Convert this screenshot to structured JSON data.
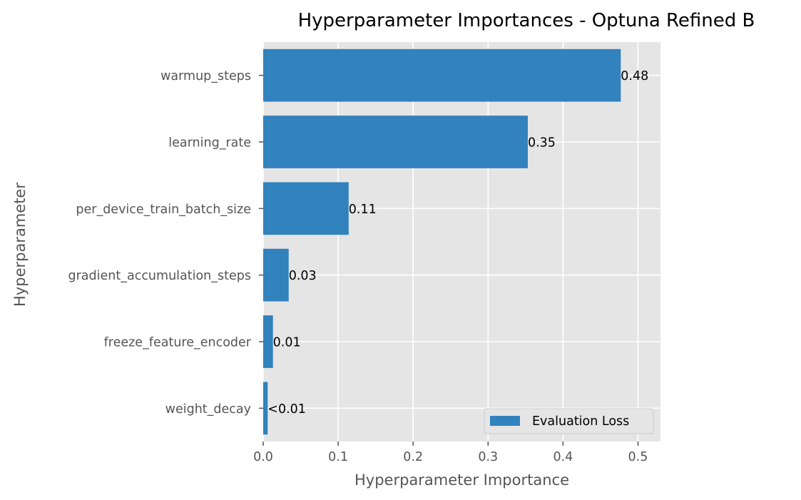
{
  "chart_data": {
    "type": "bar",
    "orientation": "horizontal",
    "title": "Hyperparameter Importances - Optuna Refined B",
    "xlabel": "Hyperparameter Importance",
    "ylabel": "Hyperparameter",
    "categories": [
      "warmup_steps",
      "learning_rate",
      "per_device_train_batch_size",
      "gradient_accumulation_steps",
      "freeze_feature_encoder",
      "weight_decay"
    ],
    "series": [
      {
        "name": "Evaluation Loss",
        "values": [
          0.477,
          0.353,
          0.114,
          0.034,
          0.013,
          0.006
        ],
        "labels": [
          "0.48",
          "0.35",
          "0.11",
          "0.03",
          "0.01",
          "<0.01"
        ]
      }
    ],
    "xlim": [
      0,
      0.53
    ],
    "xticks": [
      0.0,
      0.1,
      0.2,
      0.3,
      0.4,
      0.5
    ],
    "xtick_labels": [
      "0.0",
      "0.1",
      "0.2",
      "0.3",
      "0.4",
      "0.5"
    ],
    "grid": true,
    "legend_position": "bottom-right",
    "colors": {
      "bar": "#3182bd",
      "plot_background": "#e5e5e5",
      "grid": "#ffffff",
      "tick": "#555555"
    }
  }
}
